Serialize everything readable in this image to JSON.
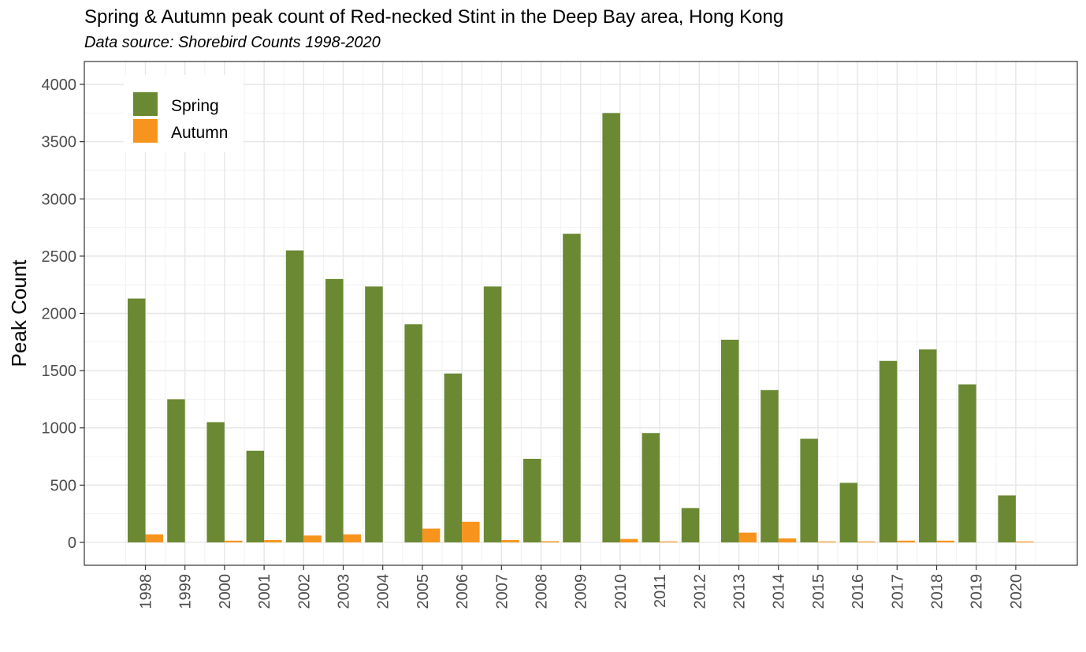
{
  "chart_data": {
    "type": "bar",
    "title": "Spring & Autumn peak count of Red-necked Stint in the Deep Bay area, Hong Kong",
    "subtitle": "Data source: Shorebird Counts 1998-2020",
    "xlabel": "",
    "ylabel": "Peak Count",
    "ylim": [
      -200,
      4200
    ],
    "yticks": [
      0,
      500,
      1000,
      1500,
      2000,
      2500,
      3000,
      3500,
      4000
    ],
    "grid": true,
    "legend_position": "top-left",
    "categories": [
      "1998",
      "1999",
      "2000",
      "2001",
      "2002",
      "2003",
      "2004",
      "2005",
      "2006",
      "2007",
      "2008",
      "2009",
      "2010",
      "2011",
      "2012",
      "2013",
      "2014",
      "2015",
      "2016",
      "2017",
      "2018",
      "2019",
      "2020"
    ],
    "series": [
      {
        "name": "Spring",
        "color": "#6b8932",
        "values": [
          2130,
          1250,
          1050,
          800,
          2550,
          2300,
          2235,
          1905,
          1475,
          2235,
          730,
          2695,
          3750,
          955,
          300,
          1770,
          1330,
          905,
          520,
          1585,
          1685,
          1380,
          410
        ]
      },
      {
        "name": "Autumn",
        "color": "#f7941d",
        "values": [
          70,
          0,
          15,
          20,
          60,
          70,
          0,
          120,
          180,
          20,
          10,
          0,
          30,
          8,
          0,
          85,
          35,
          8,
          8,
          15,
          15,
          0,
          8
        ]
      }
    ]
  }
}
